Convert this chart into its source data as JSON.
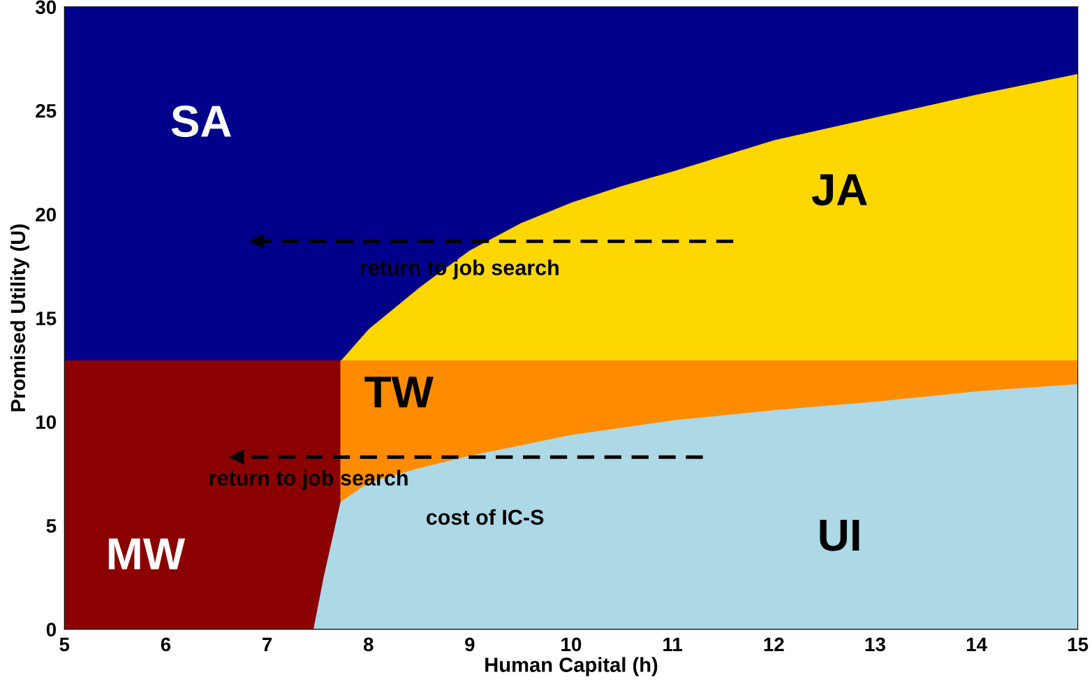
{
  "chart_data": {
    "type": "area",
    "stacked": true,
    "xlabel": "Human Capital (h)",
    "ylabel": "Promised Utility (U)",
    "xlim": [
      5,
      15
    ],
    "ylim": [
      0,
      30
    ],
    "xticks": [
      5,
      6,
      7,
      8,
      9,
      10,
      11,
      12,
      13,
      14,
      15
    ],
    "yticks": [
      0,
      5,
      10,
      15,
      20,
      25,
      30
    ],
    "grid": false,
    "legend": false,
    "x": [
      5,
      7.45,
      7.55,
      7.72,
      7.73,
      8,
      8.5,
      9,
      9.5,
      10,
      10.5,
      11,
      12,
      13,
      14,
      15
    ],
    "series": [
      {
        "name": "UI",
        "color": "#add8e6",
        "values": [
          0,
          0,
          2.5,
          6.2,
          6.2,
          7.1,
          7.8,
          8.4,
          8.9,
          9.4,
          9.75,
          10.1,
          10.6,
          11.0,
          11.5,
          11.85
        ]
      },
      {
        "name": "MW",
        "color": "#8b0000",
        "values": [
          13,
          13,
          10.5,
          6.8,
          null,
          null,
          null,
          null,
          null,
          null,
          null,
          null,
          null,
          null,
          null,
          null
        ]
      },
      {
        "name": "TW",
        "color": "#ff8c00",
        "values": [
          null,
          null,
          null,
          null,
          6.8,
          5.9,
          5.2,
          4.6,
          4.1,
          3.6,
          3.25,
          2.9,
          2.4,
          2.0,
          1.5,
          1.15
        ]
      },
      {
        "name": "JA",
        "color": "#ffd700",
        "values": [
          null,
          null,
          null,
          null,
          0,
          1.5,
          3.5,
          5.3,
          6.6,
          7.6,
          8.4,
          9.1,
          10.6,
          11.7,
          12.8,
          13.8
        ]
      },
      {
        "name": "SA",
        "color": "#00008b",
        "values": [
          17,
          17,
          17,
          17,
          17,
          15.5,
          13.5,
          11.7,
          10.4,
          9.4,
          8.6,
          7.9,
          6.4,
          5.3,
          4.2,
          3.2
        ]
      },
      {
        "type": "line",
        "color": "#000000",
        "line_style": "dashed",
        "marker": "triangle",
        "x": [
          11.6,
          6.9
        ],
        "values": [
          18.7,
          18.7
        ]
      },
      {
        "type": "line",
        "color": "#000000",
        "line_style": "dashed",
        "marker": "triangle",
        "x": [
          11.3,
          6.7
        ],
        "values": [
          8.3,
          8.3
        ]
      }
    ],
    "annotations": [
      "return to job search",
      "return to job search",
      "cost of IC-S"
    ]
  }
}
